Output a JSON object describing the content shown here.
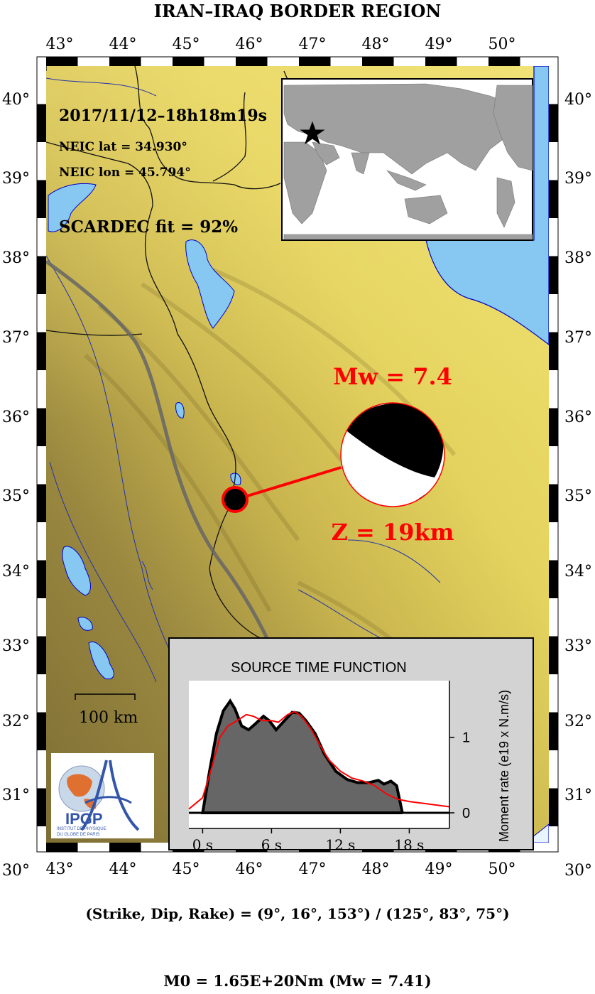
{
  "title": "IRAN–IRAQ BORDER REGION",
  "lon_ticks": [
    "43°",
    "44°",
    "45°",
    "46°",
    "47°",
    "48°",
    "49°",
    "50°"
  ],
  "lat_ticks": [
    "40°",
    "39°",
    "38°",
    "37°",
    "36°",
    "35°",
    "34°",
    "33°",
    "32°",
    "31°",
    "30°"
  ],
  "event": {
    "datetime": "2017/11/12–18h18m19s",
    "lat_label": "NEIC lat  = 34.930°",
    "lon_label": "NEIC lon = 45.794°",
    "fit_label": "SCARDEC fit = 92%",
    "mw_label": "Mw = 7.4",
    "depth_label": "Z =  19km"
  },
  "scale_bar_label": "100 km",
  "logo": {
    "name": "IPGP",
    "subtitle_1": "INSTITUT DE PHYSIQUE",
    "subtitle_2": "DU GLOBE DE PARIS"
  },
  "stf": {
    "title": "SOURCE TIME FUNCTION",
    "ylabel": "Moment rate (e19 x N.m/s)",
    "x_ticks": [
      "0 s",
      "6 s",
      "12 s",
      "18 s"
    ],
    "y_ticks": [
      "0",
      "1"
    ]
  },
  "footer": {
    "mechanism": "(Strike, Dip, Rake) = (9°, 16°, 153°) / (125°, 83°, 75°)",
    "moment": "M0 = 1.65E+20Nm  (Mw = 7.41)"
  },
  "colors": {
    "water": "#86c8f2",
    "lowland": "#8a7a3a",
    "highland": "#e8d860",
    "accent_red": "#ff0000"
  }
}
